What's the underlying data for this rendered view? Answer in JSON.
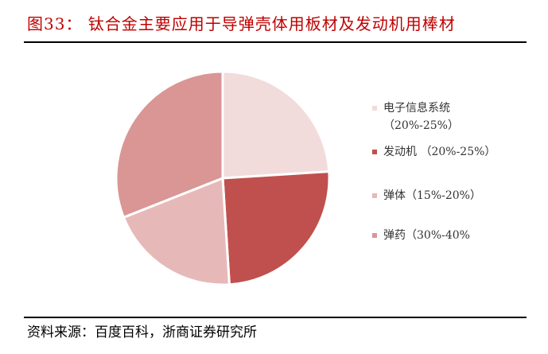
{
  "title": "图33：  钛合金主要应用于导弹壳体用板材及发动机用棒材",
  "source": "资料来源：百度百科，浙商证券研究所",
  "chart_data": {
    "type": "pie",
    "start": "top",
    "direction": "clockwise",
    "legend_position": "right",
    "slices": [
      {
        "label": "电子信息系统（20%-25%）",
        "value": 24,
        "color": "#f2dcdb"
      },
      {
        "label": "发动机 （20%-25%）",
        "value": 25,
        "color": "#c0504d"
      },
      {
        "label": "弹体（15%-20%）",
        "value": 20,
        "color": "#e6b9b8"
      },
      {
        "label": "弹药（30%-40%",
        "value": 31,
        "color": "#d99694"
      }
    ]
  }
}
